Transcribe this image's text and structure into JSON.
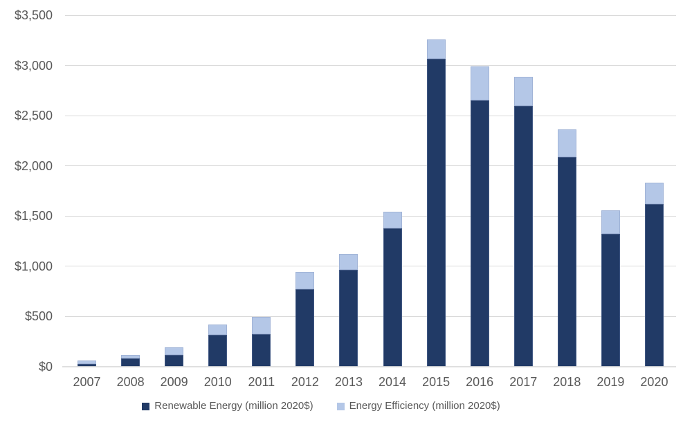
{
  "chart_data": {
    "type": "bar",
    "stacked": true,
    "categories": [
      "2007",
      "2008",
      "2009",
      "2010",
      "2011",
      "2012",
      "2013",
      "2014",
      "2015",
      "2016",
      "2017",
      "2018",
      "2019",
      "2020"
    ],
    "series": [
      {
        "name": "Renewable Energy (million 2020$)",
        "color": "#213A66",
        "values": [
          30,
          80,
          120,
          315,
          325,
          770,
          965,
          1380,
          3065,
          2650,
          2600,
          2085,
          1320,
          1620
        ]
      },
      {
        "name": "Energy Efficiency (million 2020$)",
        "color": "#B4C7E7",
        "values": [
          35,
          40,
          70,
          105,
          170,
          175,
          160,
          160,
          195,
          340,
          290,
          280,
          240,
          215
        ]
      }
    ],
    "stack_totals": [
      65,
      120,
      190,
      420,
      495,
      945,
      1125,
      1540,
      3260,
      2990,
      2890,
      2365,
      1560,
      1835
    ],
    "y_axis": {
      "min": 0,
      "max": 3500,
      "step": 500,
      "tick_values": [
        0,
        500,
        1000,
        1500,
        2000,
        2500,
        3000,
        3500
      ],
      "tick_labels": [
        "$0",
        "$500",
        "$1,000",
        "$1,500",
        "$2,000",
        "$2,500",
        "$3,000",
        "$3,500"
      ]
    },
    "grid": true,
    "legend_position": "bottom",
    "colors": {
      "gridline": "#D9D9D9",
      "axis_line": "#D9D9D9",
      "label_text": "#595959",
      "background": "#FFFFFF"
    }
  }
}
